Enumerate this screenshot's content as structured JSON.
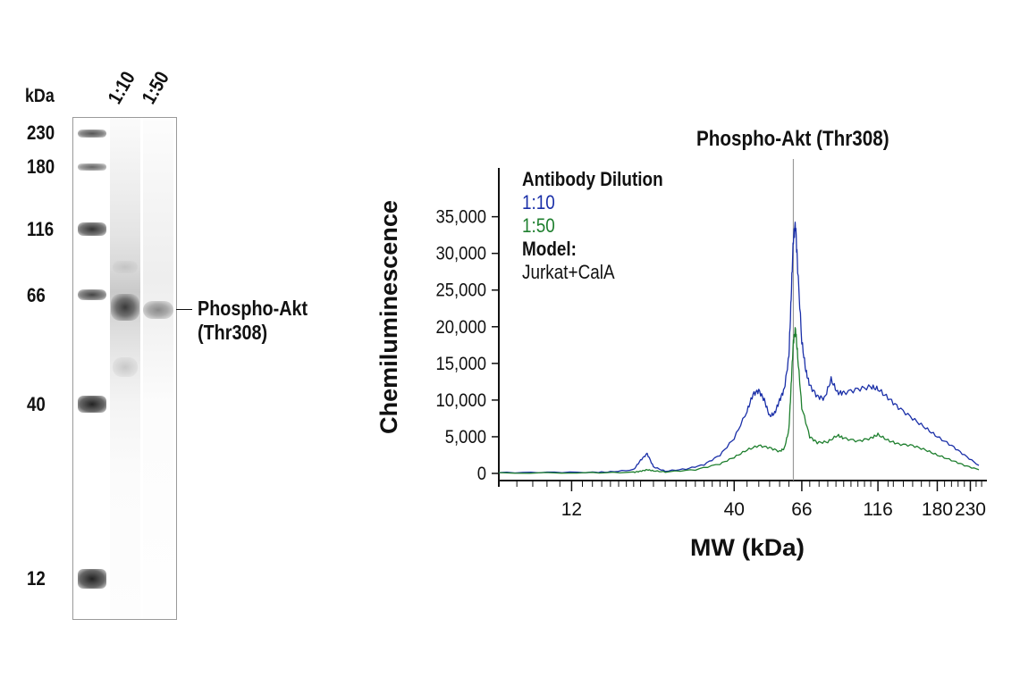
{
  "gel": {
    "unit_label": "kDa",
    "lanes": [
      "1:10",
      "1:50"
    ],
    "markers": [
      "230",
      "180",
      "116",
      "66",
      "40",
      "12"
    ],
    "annotation": [
      "Phospho-Akt",
      "(Thr308)"
    ]
  },
  "chart_data": {
    "type": "line",
    "title": "Phospho-Akt (Thr308)",
    "xlabel": "MW (kDa)",
    "ylabel": "Chemiluminescence",
    "xscale": "log",
    "xlim": [
      7,
      260
    ],
    "ylim": [
      0,
      38000
    ],
    "x_ticks": [
      12,
      40,
      66,
      116,
      180,
      230
    ],
    "x_tick_labels": [
      "12",
      "40",
      "66",
      "116",
      "180",
      "230"
    ],
    "y_ticks": [
      0,
      5000,
      10000,
      15000,
      20000,
      25000,
      30000,
      35000
    ],
    "y_tick_labels": [
      "0",
      "5,000",
      "10,000",
      "15,000",
      "20,000",
      "25,000",
      "30,000",
      "35,000"
    ],
    "reference_line_x": 62,
    "legend": {
      "title": "Antibody Dilution",
      "entries": [
        "1:10",
        "1:50"
      ],
      "model_label": "Model:",
      "model_value": "Jurkat+CalA",
      "placement": "top-left"
    },
    "series": [
      {
        "name": "1:10",
        "color": "#1a2fa8",
        "x": [
          7,
          10,
          14,
          16,
          19,
          20,
          21,
          22,
          24,
          28,
          32,
          36,
          40,
          44,
          46,
          48,
          50,
          52,
          54,
          56,
          58,
          60,
          61,
          62,
          63,
          64,
          66,
          68,
          70,
          74,
          78,
          82,
          86,
          90,
          100,
          110,
          116,
          125,
          135,
          150,
          165,
          180,
          200,
          220,
          245
        ],
        "y": [
          100,
          150,
          150,
          200,
          500,
          1800,
          2700,
          900,
          300,
          600,
          1200,
          2500,
          4800,
          8500,
          10800,
          11300,
          10000,
          7800,
          8200,
          10000,
          11500,
          16000,
          24000,
          32000,
          34000,
          28000,
          18000,
          14000,
          12000,
          10500,
          10200,
          12800,
          11000,
          11000,
          11500,
          11800,
          11500,
          10300,
          9000,
          7500,
          6200,
          5000,
          3800,
          2500,
          1100
        ]
      },
      {
        "name": "1:50",
        "color": "#1e7f2e",
        "x": [
          7,
          14,
          19,
          20,
          21,
          22,
          24,
          30,
          36,
          40,
          44,
          48,
          52,
          56,
          58,
          60,
          61,
          62,
          63,
          64,
          66,
          70,
          74,
          80,
          86,
          90,
          100,
          110,
          116,
          125,
          135,
          150,
          165,
          180,
          200,
          220,
          245
        ],
        "y": [
          50,
          80,
          150,
          300,
          500,
          350,
          200,
          500,
          1300,
          2200,
          3200,
          3800,
          3500,
          3000,
          3400,
          6000,
          12000,
          18000,
          19700,
          16000,
          9000,
          5000,
          4200,
          4300,
          5200,
          4800,
          4400,
          4800,
          5300,
          4500,
          4000,
          3800,
          3200,
          2500,
          1800,
          1100,
          500
        ]
      }
    ]
  }
}
